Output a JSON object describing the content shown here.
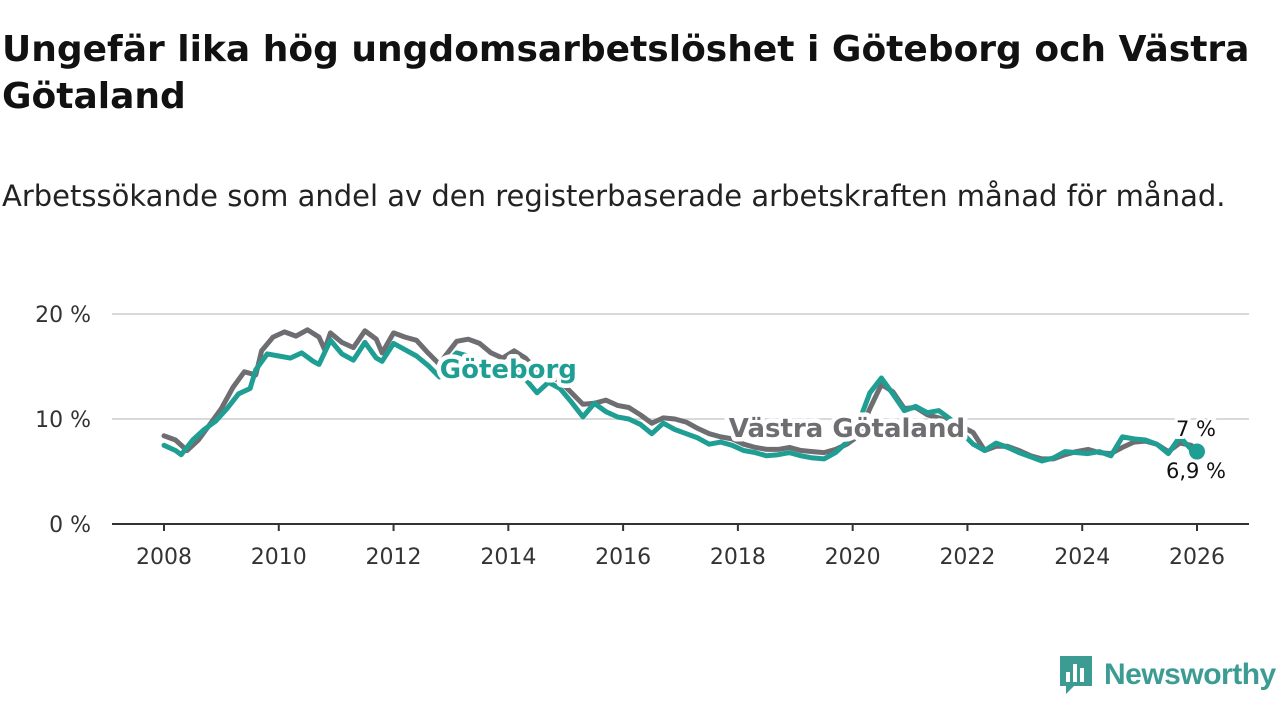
{
  "title": "Ungefär lika hög ungdomsarbetslöshet i Göteborg och Västra Götaland",
  "subtitle": "Arbetssökande som andel av den registerbaserade arbetskraften månad för månad.",
  "brand": {
    "name": "Newsworthy",
    "color": "#3c9c93",
    "icon": "chart-bubble-icon"
  },
  "chart_data": {
    "type": "line",
    "title": "Ungefär lika hög ungdomsarbetslöshet i Göteborg och Västra Götaland",
    "xlabel": "",
    "ylabel": "",
    "ylim": [
      0,
      20
    ],
    "xlim": [
      2007.5,
      2026.5
    ],
    "y_ticks": [
      {
        "value": 0,
        "label": "0 %"
      },
      {
        "value": 10,
        "label": "10 %"
      },
      {
        "value": 20,
        "label": "20 %"
      }
    ],
    "x_ticks": [
      {
        "value": 2008,
        "label": "2008"
      },
      {
        "value": 2010,
        "label": "2010"
      },
      {
        "value": 2012,
        "label": "2012"
      },
      {
        "value": 2014,
        "label": "2014"
      },
      {
        "value": 2016,
        "label": "2016"
      },
      {
        "value": 2018,
        "label": "2018"
      },
      {
        "value": 2020,
        "label": "2020"
      },
      {
        "value": 2022,
        "label": "2022"
      },
      {
        "value": 2024,
        "label": "2024"
      },
      {
        "value": 2026,
        "label": "2026"
      }
    ],
    "grid": true,
    "series": [
      {
        "name": "Västra Götaland",
        "color": "#6e6e72",
        "label": {
          "text": "Västra Götaland",
          "x": 2019.9,
          "y": 8.3
        },
        "end_label": "7 %",
        "points": [
          [
            2008.0,
            8.4
          ],
          [
            2008.2,
            8.0
          ],
          [
            2008.4,
            7.0
          ],
          [
            2008.6,
            8.0
          ],
          [
            2008.8,
            9.5
          ],
          [
            2009.0,
            11.0
          ],
          [
            2009.2,
            13.0
          ],
          [
            2009.4,
            14.5
          ],
          [
            2009.6,
            14.2
          ],
          [
            2009.7,
            16.5
          ],
          [
            2009.9,
            17.8
          ],
          [
            2010.1,
            18.3
          ],
          [
            2010.3,
            17.9
          ],
          [
            2010.5,
            18.5
          ],
          [
            2010.7,
            17.8
          ],
          [
            2010.8,
            16.6
          ],
          [
            2010.9,
            18.2
          ],
          [
            2011.1,
            17.3
          ],
          [
            2011.3,
            16.8
          ],
          [
            2011.5,
            18.4
          ],
          [
            2011.7,
            17.6
          ],
          [
            2011.8,
            16.3
          ],
          [
            2012.0,
            18.2
          ],
          [
            2012.2,
            17.8
          ],
          [
            2012.4,
            17.5
          ],
          [
            2012.6,
            16.3
          ],
          [
            2012.8,
            15.2
          ],
          [
            2012.9,
            16.0
          ],
          [
            2013.1,
            17.4
          ],
          [
            2013.3,
            17.6
          ],
          [
            2013.5,
            17.2
          ],
          [
            2013.7,
            16.3
          ],
          [
            2013.9,
            15.8
          ],
          [
            2014.1,
            16.5
          ],
          [
            2014.3,
            15.8
          ],
          [
            2014.5,
            14.6
          ],
          [
            2014.7,
            14.1
          ],
          [
            2014.9,
            13.6
          ],
          [
            2015.1,
            12.5
          ],
          [
            2015.3,
            11.4
          ],
          [
            2015.5,
            11.5
          ],
          [
            2015.7,
            11.8
          ],
          [
            2015.9,
            11.3
          ],
          [
            2016.1,
            11.1
          ],
          [
            2016.3,
            10.4
          ],
          [
            2016.5,
            9.6
          ],
          [
            2016.7,
            10.1
          ],
          [
            2016.9,
            10.0
          ],
          [
            2017.1,
            9.7
          ],
          [
            2017.3,
            9.1
          ],
          [
            2017.5,
            8.6
          ],
          [
            2017.7,
            8.3
          ],
          [
            2017.9,
            8.1
          ],
          [
            2018.1,
            7.6
          ],
          [
            2018.3,
            7.3
          ],
          [
            2018.5,
            7.1
          ],
          [
            2018.7,
            7.1
          ],
          [
            2018.9,
            7.3
          ],
          [
            2019.1,
            7.0
          ],
          [
            2019.3,
            6.9
          ],
          [
            2019.5,
            6.8
          ],
          [
            2019.7,
            7.1
          ],
          [
            2019.9,
            7.6
          ],
          [
            2020.1,
            8.4
          ],
          [
            2020.3,
            11.0
          ],
          [
            2020.5,
            13.3
          ],
          [
            2020.7,
            12.6
          ],
          [
            2020.9,
            11.0
          ],
          [
            2021.1,
            11.1
          ],
          [
            2021.3,
            10.4
          ],
          [
            2021.5,
            10.1
          ],
          [
            2021.7,
            9.7
          ],
          [
            2021.9,
            9.3
          ],
          [
            2022.1,
            8.7
          ],
          [
            2022.3,
            7.0
          ],
          [
            2022.5,
            7.4
          ],
          [
            2022.7,
            7.4
          ],
          [
            2022.9,
            7.0
          ],
          [
            2023.1,
            6.5
          ],
          [
            2023.3,
            6.2
          ],
          [
            2023.5,
            6.2
          ],
          [
            2023.7,
            6.6
          ],
          [
            2023.9,
            6.9
          ],
          [
            2024.1,
            7.1
          ],
          [
            2024.3,
            6.8
          ],
          [
            2024.5,
            6.7
          ],
          [
            2024.7,
            7.3
          ],
          [
            2024.9,
            7.8
          ],
          [
            2025.1,
            7.9
          ],
          [
            2025.3,
            7.6
          ],
          [
            2025.5,
            6.9
          ],
          [
            2025.7,
            7.7
          ],
          [
            2025.9,
            7.5
          ],
          [
            2026.0,
            7.0
          ]
        ]
      },
      {
        "name": "Göteborg",
        "color": "#1f9e94",
        "label": {
          "text": "Göteborg",
          "x": 2014.0,
          "y": 13.9
        },
        "end_label": "6,9 %",
        "points": [
          [
            2008.0,
            7.5
          ],
          [
            2008.2,
            7.0
          ],
          [
            2008.3,
            6.6
          ],
          [
            2008.5,
            8.0
          ],
          [
            2008.7,
            9.0
          ],
          [
            2008.9,
            9.8
          ],
          [
            2009.1,
            11.0
          ],
          [
            2009.3,
            12.4
          ],
          [
            2009.5,
            12.9
          ],
          [
            2009.6,
            14.7
          ],
          [
            2009.8,
            16.2
          ],
          [
            2010.0,
            16.0
          ],
          [
            2010.2,
            15.8
          ],
          [
            2010.4,
            16.3
          ],
          [
            2010.6,
            15.5
          ],
          [
            2010.7,
            15.2
          ],
          [
            2010.9,
            17.5
          ],
          [
            2011.1,
            16.2
          ],
          [
            2011.3,
            15.6
          ],
          [
            2011.5,
            17.3
          ],
          [
            2011.7,
            15.8
          ],
          [
            2011.8,
            15.5
          ],
          [
            2012.0,
            17.2
          ],
          [
            2012.2,
            16.6
          ],
          [
            2012.4,
            16.0
          ],
          [
            2012.6,
            15.1
          ],
          [
            2012.8,
            14.0
          ],
          [
            2012.9,
            15.2
          ],
          [
            2013.1,
            16.3
          ],
          [
            2013.3,
            16.0
          ],
          [
            2013.5,
            15.7
          ],
          [
            2013.7,
            15.2
          ],
          [
            2013.9,
            15.0
          ],
          [
            2014.1,
            15.0
          ],
          [
            2014.3,
            13.8
          ],
          [
            2014.5,
            12.5
          ],
          [
            2014.7,
            13.5
          ],
          [
            2014.9,
            12.9
          ],
          [
            2015.1,
            11.6
          ],
          [
            2015.3,
            10.2
          ],
          [
            2015.5,
            11.5
          ],
          [
            2015.7,
            10.7
          ],
          [
            2015.9,
            10.2
          ],
          [
            2016.1,
            10.0
          ],
          [
            2016.3,
            9.5
          ],
          [
            2016.5,
            8.6
          ],
          [
            2016.7,
            9.6
          ],
          [
            2016.9,
            9.0
          ],
          [
            2017.1,
            8.6
          ],
          [
            2017.3,
            8.2
          ],
          [
            2017.5,
            7.6
          ],
          [
            2017.7,
            7.8
          ],
          [
            2017.9,
            7.5
          ],
          [
            2018.1,
            7.0
          ],
          [
            2018.3,
            6.8
          ],
          [
            2018.5,
            6.5
          ],
          [
            2018.7,
            6.6
          ],
          [
            2018.9,
            6.8
          ],
          [
            2019.1,
            6.5
          ],
          [
            2019.3,
            6.3
          ],
          [
            2019.5,
            6.2
          ],
          [
            2019.7,
            6.8
          ],
          [
            2019.9,
            7.8
          ],
          [
            2020.1,
            9.6
          ],
          [
            2020.3,
            12.5
          ],
          [
            2020.5,
            13.9
          ],
          [
            2020.7,
            12.4
          ],
          [
            2020.9,
            10.8
          ],
          [
            2021.1,
            11.2
          ],
          [
            2021.3,
            10.6
          ],
          [
            2021.5,
            10.8
          ],
          [
            2021.7,
            10.0
          ],
          [
            2021.9,
            8.7
          ],
          [
            2022.1,
            7.6
          ],
          [
            2022.3,
            7.0
          ],
          [
            2022.5,
            7.7
          ],
          [
            2022.7,
            7.3
          ],
          [
            2022.9,
            6.8
          ],
          [
            2023.1,
            6.4
          ],
          [
            2023.3,
            6.0
          ],
          [
            2023.5,
            6.3
          ],
          [
            2023.7,
            6.9
          ],
          [
            2023.9,
            6.8
          ],
          [
            2024.1,
            6.7
          ],
          [
            2024.3,
            6.9
          ],
          [
            2024.5,
            6.5
          ],
          [
            2024.7,
            8.3
          ],
          [
            2024.9,
            8.1
          ],
          [
            2025.1,
            8.0
          ],
          [
            2025.3,
            7.6
          ],
          [
            2025.5,
            6.7
          ],
          [
            2025.7,
            8.3
          ],
          [
            2025.9,
            7.1
          ],
          [
            2026.0,
            6.9
          ]
        ]
      }
    ]
  }
}
